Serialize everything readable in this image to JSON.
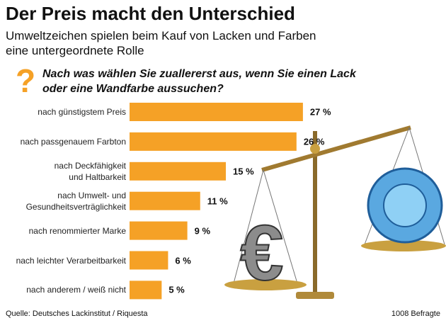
{
  "chart_data": {
    "type": "bar",
    "orientation": "horizontal",
    "title": "Der Preis macht den Unterschied",
    "subtitle": "Umweltzeichen spielen beim Kauf von Lacken und Farben\neine untergeordnete Rolle",
    "question_mark": "?",
    "question": "Nach was wählen Sie zuallererst aus, wenn Sie einen Lack\noder eine Wandfarbe aussuchen?",
    "categories": [
      "nach günstigstem Preis",
      "nach passgenauem Farbton",
      "nach Deckfähigkeit\nund Haltbarkeit",
      "nach Umwelt- und\nGesundheitsverträglichkeit",
      "nach renommierter Marke",
      "nach leichter Verarbeitbarkeit",
      "nach anderem / weiß nicht"
    ],
    "values": [
      27,
      26,
      15,
      11,
      9,
      6,
      5
    ],
    "value_labels": [
      "27 %",
      "26 %",
      "15 %",
      "11 %",
      "9 %",
      "6 %",
      "5 %"
    ],
    "color": "#f5a126",
    "source": "Quelle: Deutsches Lackinstitut / Riquesta",
    "note": "1008 Befragte"
  }
}
